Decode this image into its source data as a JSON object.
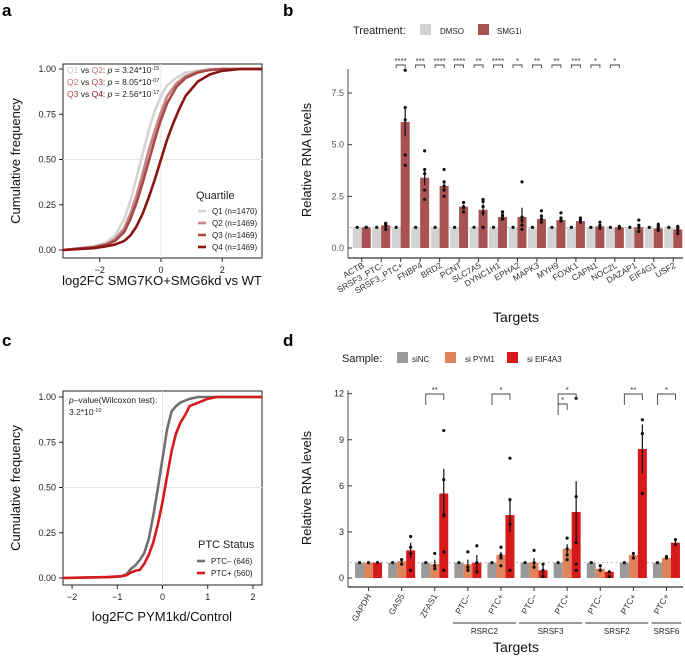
{
  "panels": {
    "a": "a",
    "b": "b",
    "c": "c",
    "d": "d"
  },
  "chart_data": [
    {
      "id": "a",
      "type": "line",
      "subtype": "ecdf",
      "title": "",
      "xlabel": "log2FC SMG7KO+SMG6kd vs WT",
      "ylabel": "Cumulative frequency",
      "xlim": [
        -3.2,
        3.3
      ],
      "ylim": [
        0,
        1
      ],
      "xticks": [
        -2,
        0,
        2
      ],
      "xtick_labels": [
        "−2",
        "0",
        "2"
      ],
      "yticks": [
        0,
        0.25,
        0.5,
        0.75,
        1
      ],
      "ytick_labels": [
        "0.00",
        "0.25",
        "0.50",
        "0.75",
        "1.00"
      ],
      "grid": true,
      "legend_title": "Quartile",
      "legend_position": "bottom-right",
      "annotations": [
        {
          "a": "Q1",
          "vs": " vs ",
          "b": "Q2",
          "sep": ": ",
          "p": "p",
          "eq": " = 3.24*10",
          "exp": "-15"
        },
        {
          "a": "Q2",
          "vs": " vs ",
          "b": "Q3",
          "sep": ": ",
          "p": "p",
          "eq": " = 8.05*10",
          "exp": "-07"
        },
        {
          "a": "Q3",
          "vs": " vs ",
          "b": "Q4",
          "sep": ": ",
          "p": "p",
          "eq": " = 2.56*10",
          "exp": "-17"
        }
      ],
      "series": [
        {
          "name": "Q1 (n=1470)",
          "color": "#d4d4d4",
          "x": [
            -3.2,
            -2.2,
            -1.8,
            -1.5,
            -1.2,
            -1.0,
            -0.8,
            -0.6,
            -0.4,
            -0.2,
            0,
            0.2,
            0.5,
            0.8,
            1.2,
            1.6,
            2.0,
            3.3
          ],
          "y": [
            0.0,
            0.02,
            0.04,
            0.08,
            0.17,
            0.27,
            0.4,
            0.53,
            0.66,
            0.77,
            0.85,
            0.91,
            0.95,
            0.98,
            0.99,
            1.0,
            1.0,
            1.0
          ]
        },
        {
          "name": "Q2 (n=1469)",
          "color": "#c48585",
          "x": [
            -3.2,
            -2.2,
            -1.8,
            -1.5,
            -1.2,
            -1.0,
            -0.8,
            -0.6,
            -0.4,
            -0.2,
            0,
            0.2,
            0.5,
            0.8,
            1.2,
            1.6,
            2.0,
            3.3
          ],
          "y": [
            0.0,
            0.015,
            0.03,
            0.06,
            0.12,
            0.2,
            0.3,
            0.42,
            0.55,
            0.66,
            0.76,
            0.85,
            0.92,
            0.96,
            0.985,
            0.995,
            1.0,
            1.0
          ]
        },
        {
          "name": "Q3 (n=1469)",
          "color": "#a94848",
          "x": [
            -3.2,
            -2.2,
            -1.8,
            -1.5,
            -1.2,
            -1.0,
            -0.8,
            -0.6,
            -0.4,
            -0.2,
            0,
            0.2,
            0.5,
            0.8,
            1.2,
            1.6,
            2.0,
            3.3
          ],
          "y": [
            0.0,
            0.015,
            0.03,
            0.05,
            0.1,
            0.17,
            0.26,
            0.37,
            0.49,
            0.61,
            0.72,
            0.81,
            0.9,
            0.95,
            0.98,
            0.995,
            1.0,
            1.0
          ]
        },
        {
          "name": "Q4 (n=1469)",
          "color": "#8b1414",
          "x": [
            -3.2,
            -2.2,
            -1.8,
            -1.5,
            -1.2,
            -1.0,
            -0.8,
            -0.6,
            -0.4,
            -0.2,
            0,
            0.2,
            0.4,
            0.6,
            0.8,
            1.2,
            1.6,
            2.0,
            2.6,
            3.3
          ],
          "y": [
            0.0,
            0.01,
            0.02,
            0.03,
            0.05,
            0.08,
            0.13,
            0.2,
            0.29,
            0.39,
            0.5,
            0.61,
            0.7,
            0.78,
            0.85,
            0.93,
            0.97,
            0.99,
            1.0,
            1.0
          ]
        }
      ]
    },
    {
      "id": "b",
      "type": "bar",
      "title": "",
      "xlabel": "Targets",
      "ylabel": "Relative RNA levels",
      "ylim": [
        0,
        9
      ],
      "yticks": [
        0,
        2.5,
        5,
        7.5
      ],
      "ytick_labels": [
        "0.0",
        "2.5",
        "5.0",
        "7.5"
      ],
      "reference_line": 1,
      "legend_title": "Treatment:",
      "legend_position": "top",
      "categories": [
        "ACTB",
        "SRSF3_PTC-",
        "SRSF3_PTC+",
        "FNBP4",
        "BRD2",
        "PCNT",
        "SLC7A5",
        "DYNC1H1",
        "EPHA2",
        "MAPK3",
        "MYH9",
        "FOXK1",
        "CAPN1",
        "NOC2L",
        "DAZAP1",
        "EIF4G1",
        "USF2"
      ],
      "series": [
        {
          "name": "DMSO",
          "color": "#d3d3d3",
          "values": [
            1,
            1,
            1,
            1,
            1,
            1,
            1,
            1,
            1,
            1,
            1,
            1,
            1,
            1,
            1,
            1,
            1
          ]
        },
        {
          "name": "SMG1i",
          "color": "#a85252",
          "values": [
            1.0,
            1.1,
            6.1,
            3.4,
            3.0,
            2.0,
            1.85,
            1.5,
            1.5,
            1.4,
            1.35,
            1.3,
            1.05,
            1.0,
            1.0,
            0.95,
            0.9
          ],
          "error": [
            0.0,
            0.15,
            0.7,
            0.35,
            0.25,
            0.1,
            0.3,
            0.1,
            0.45,
            0.15,
            0.1,
            0.08,
            0.1,
            0.05,
            0.15,
            0.1,
            0.1
          ],
          "points": [
            [
              1,
              1,
              1
            ],
            [
              0.9,
              1.05,
              1.2,
              1.15
            ],
            [
              8.6,
              6.8,
              6.2,
              4.5,
              4.0
            ],
            [
              4.7,
              3.8,
              3.6,
              2.8,
              2.35
            ],
            [
              3.8,
              3.2,
              3.0,
              2.8,
              2.5
            ],
            [
              2.2,
              2.0,
              1.95,
              1.75
            ],
            [
              2.35,
              2.25,
              2.0,
              1.7,
              1.0
            ],
            [
              1.75,
              1.6,
              1.55,
              1.4
            ],
            [
              3.2,
              1.5,
              1.35,
              1.1,
              0.9
            ],
            [
              1.8,
              1.55,
              1.4,
              1.25
            ],
            [
              1.7,
              1.45,
              1.35,
              1.3
            ],
            [
              1.45,
              1.35,
              1.25
            ],
            [
              1.25,
              1.1,
              1.0,
              0.95
            ],
            [
              1.05,
              1.0,
              0.95
            ],
            [
              1.35,
              1.1,
              1.0,
              0.8
            ],
            [
              1.15,
              1.05,
              0.95,
              0.85
            ],
            [
              1.05,
              0.95,
              0.85,
              0.7
            ]
          ]
        }
      ],
      "significance": [
        {
          "category": "SRSF3_PTC+",
          "label": "****"
        },
        {
          "category": "FNBP4",
          "label": "***"
        },
        {
          "category": "BRD2",
          "label": "****"
        },
        {
          "category": "PCNT",
          "label": "****"
        },
        {
          "category": "SLC7A5",
          "label": "**"
        },
        {
          "category": "DYNC1H1",
          "label": "****"
        },
        {
          "category": "EPHA2",
          "label": "*"
        },
        {
          "category": "MAPK3",
          "label": "**"
        },
        {
          "category": "MYH9",
          "label": "**"
        },
        {
          "category": "FOXK1",
          "label": "***"
        },
        {
          "category": "CAPN1",
          "label": "*"
        },
        {
          "category": "NOC2L",
          "label": "*"
        }
      ]
    },
    {
      "id": "c",
      "type": "line",
      "subtype": "ecdf",
      "title": "",
      "xlabel": "log2FC PYM1kd/Control",
      "ylabel": "Cumulative frequency",
      "xlim": [
        -2.2,
        2.2
      ],
      "ylim": [
        0,
        1
      ],
      "xticks": [
        -2,
        -1,
        0,
        1,
        2
      ],
      "xtick_labels": [
        "−2",
        "−1",
        "0",
        "1",
        "2"
      ],
      "yticks": [
        0,
        0.25,
        0.5,
        0.75,
        1
      ],
      "ytick_labels": [
        "0.00",
        "0.25",
        "0.50",
        "0.75",
        "1.00"
      ],
      "grid": true,
      "legend_title": "PTC Status",
      "legend_position": "bottom-right",
      "annotation_line1_p": "p",
      "annotation_line1_rest": "–value(Wilcoxon test):",
      "annotation_line2": "3.2*10",
      "annotation_line2_exp": "-10",
      "series": [
        {
          "name": "PTC– (646)",
          "color": "#707070",
          "x": [
            -2.2,
            -1.2,
            -0.9,
            -0.8,
            -0.7,
            -0.6,
            -0.5,
            -0.4,
            -0.3,
            -0.2,
            -0.1,
            0,
            0.1,
            0.2,
            0.3,
            0.4,
            0.6,
            0.8,
            1.0,
            1.4,
            2.2
          ],
          "y": [
            0.0,
            0.005,
            0.01,
            0.02,
            0.05,
            0.07,
            0.1,
            0.14,
            0.22,
            0.35,
            0.5,
            0.66,
            0.82,
            0.92,
            0.95,
            0.97,
            0.99,
            1.0,
            1.0,
            1.0,
            1.0
          ]
        },
        {
          "name": "PTC+ (560)",
          "color": "#d7191c",
          "x": [
            -2.2,
            -1.2,
            -0.9,
            -0.8,
            -0.7,
            -0.6,
            -0.5,
            -0.4,
            -0.3,
            -0.2,
            -0.1,
            0,
            0.1,
            0.2,
            0.3,
            0.4,
            0.5,
            0.6,
            0.8,
            1.0,
            1.2,
            1.6,
            2.2
          ],
          "y": [
            0.0,
            0.005,
            0.01,
            0.015,
            0.03,
            0.04,
            0.045,
            0.08,
            0.13,
            0.2,
            0.3,
            0.42,
            0.56,
            0.7,
            0.8,
            0.86,
            0.9,
            0.95,
            0.97,
            0.99,
            1.0,
            1.0,
            1.0
          ]
        }
      ]
    },
    {
      "id": "d",
      "type": "bar",
      "title": "",
      "xlabel": "Targets",
      "ylabel": "Relative RNA levels",
      "ylim": [
        0,
        12.5
      ],
      "yticks": [
        0,
        3,
        6,
        9,
        12
      ],
      "ytick_labels": [
        "0",
        "3",
        "6",
        "9",
        "12"
      ],
      "reference_line": 1,
      "legend_title": "Sample:",
      "legend_position": "top",
      "categories": [
        "GAPDH",
        "GAS5",
        "ZFAS1",
        "PTC–",
        "PTC+",
        "PTC–",
        "PTC+",
        "PTC–",
        "PTC+",
        "PTC+"
      ],
      "groups": [
        {
          "name": "RSRC2",
          "categories": [
            3,
            4
          ]
        },
        {
          "name": "SRSF3",
          "categories": [
            5,
            6
          ]
        },
        {
          "name": "SRSF2",
          "categories": [
            7,
            8
          ]
        },
        {
          "name": "SRSF6",
          "categories": [
            9
          ]
        }
      ],
      "series": [
        {
          "name": "siNC",
          "color": "#999999",
          "values": [
            1,
            1,
            1,
            1,
            1,
            1,
            1,
            1,
            1,
            1
          ],
          "error": [
            0,
            0,
            0,
            0,
            0,
            0,
            0,
            0,
            0,
            0
          ],
          "points": [
            [
              1
            ],
            [
              1
            ],
            [
              1
            ],
            [
              1
            ],
            [
              1
            ],
            [
              1
            ],
            [
              1
            ],
            [
              1
            ],
            [
              1
            ],
            [
              1
            ]
          ]
        },
        {
          "name": "si PYM1",
          "color": "#e0835a",
          "values": [
            1.0,
            1.1,
            0.9,
            0.9,
            1.5,
            1.0,
            1.9,
            0.6,
            1.5,
            1.3
          ],
          "error": [
            0,
            0.2,
            0.3,
            0.3,
            0.2,
            0.3,
            0.3,
            0.1,
            0.2,
            0.1
          ],
          "points": [
            [
              1
            ],
            [
              1.2,
              0.9
            ],
            [
              1.6,
              0.8,
              0.6
            ],
            [
              1.7,
              0.7,
              0.5
            ],
            [
              2.0,
              1.3,
              1.5,
              0.8
            ],
            [
              1.8,
              1.0,
              0.7
            ],
            [
              2.6,
              1.9,
              1.5,
              1.2
            ],
            [
              0.8,
              0.5
            ],
            [
              1.6,
              1.3
            ],
            [
              1.4,
              1.3
            ]
          ]
        },
        {
          "name": "si EIF4A3",
          "color": "#d7191c",
          "values": [
            1.0,
            1.8,
            5.5,
            1.0,
            4.1,
            0.5,
            4.3,
            0.4,
            8.4,
            2.3
          ],
          "error": [
            0,
            0.5,
            1.6,
            0.5,
            1.1,
            0.3,
            2.0,
            0.1,
            1.6,
            0.2
          ],
          "points": [
            [
              1
            ],
            [
              2.7,
              2.0,
              1.6,
              0.5
            ],
            [
              9.6,
              6.4,
              4.1,
              1.7,
              0.5
            ],
            [
              2.1,
              1.0,
              0.4
            ],
            [
              7.8,
              5.1,
              3.5,
              0.5
            ],
            [
              0.9,
              0.5,
              0.1
            ],
            [
              11.7,
              5.3,
              2.3,
              0.9,
              0.5
            ],
            [
              0.4,
              0.1
            ],
            [
              10.3,
              9.4,
              5.5
            ],
            [
              2.5,
              2.2
            ]
          ]
        }
      ],
      "significance": [
        {
          "category_index": 2,
          "label": "**",
          "compare": "siNC-si EIF4A3"
        },
        {
          "category_index": 4,
          "label": "*",
          "compare": "siNC-si EIF4A3"
        },
        {
          "category_index": 6,
          "label": "*",
          "compare": "siNC-si EIF4A3"
        },
        {
          "category_index": 6,
          "label": "*",
          "compare": "siNC-si PYM1"
        },
        {
          "category_index": 8,
          "label": "**",
          "compare": "siNC-si EIF4A3"
        },
        {
          "category_index": 9,
          "label": "*",
          "compare": "siNC-si EIF4A3"
        }
      ]
    }
  ]
}
